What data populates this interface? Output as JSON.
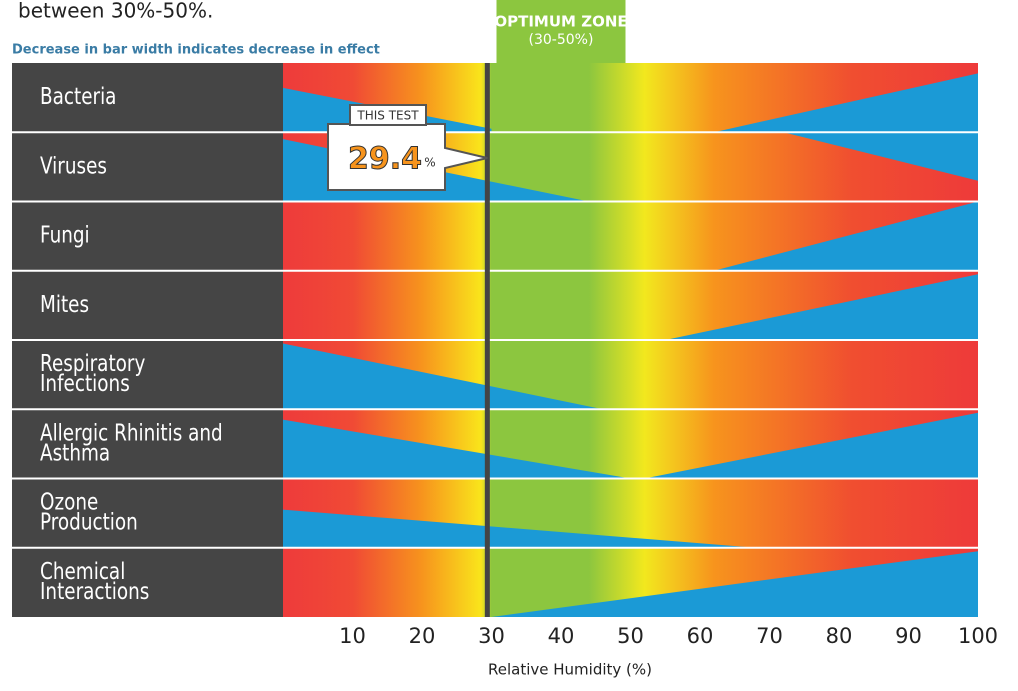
{
  "chart_data": {
    "type": "humidity-zones",
    "intro": "between 30%-50%.",
    "subtitle": "Decrease in bar width indicates decrease in effect",
    "zone_title": "OPTIMUM ZONE",
    "zone_range": "(30-50%)",
    "zone": [
      30,
      50
    ],
    "categories": [
      [
        "Bacteria"
      ],
      [
        "Viruses"
      ],
      [
        "Fungi"
      ],
      [
        "Mites"
      ],
      [
        "Respiratory",
        "Infections"
      ],
      [
        "Allergic Rhinitis and",
        "Asthma"
      ],
      [
        "Ozone",
        "Production"
      ],
      [
        "Chemical",
        "Interactions"
      ]
    ],
    "marker": {
      "label": "THIS TEST",
      "value": 29.4,
      "unit": "%"
    },
    "xlabel": "Relative Humidity (%)",
    "xlim": [
      0,
      100
    ],
    "xticks": [
      10,
      20,
      30,
      40,
      50,
      60,
      70,
      80,
      90,
      100
    ]
  }
}
